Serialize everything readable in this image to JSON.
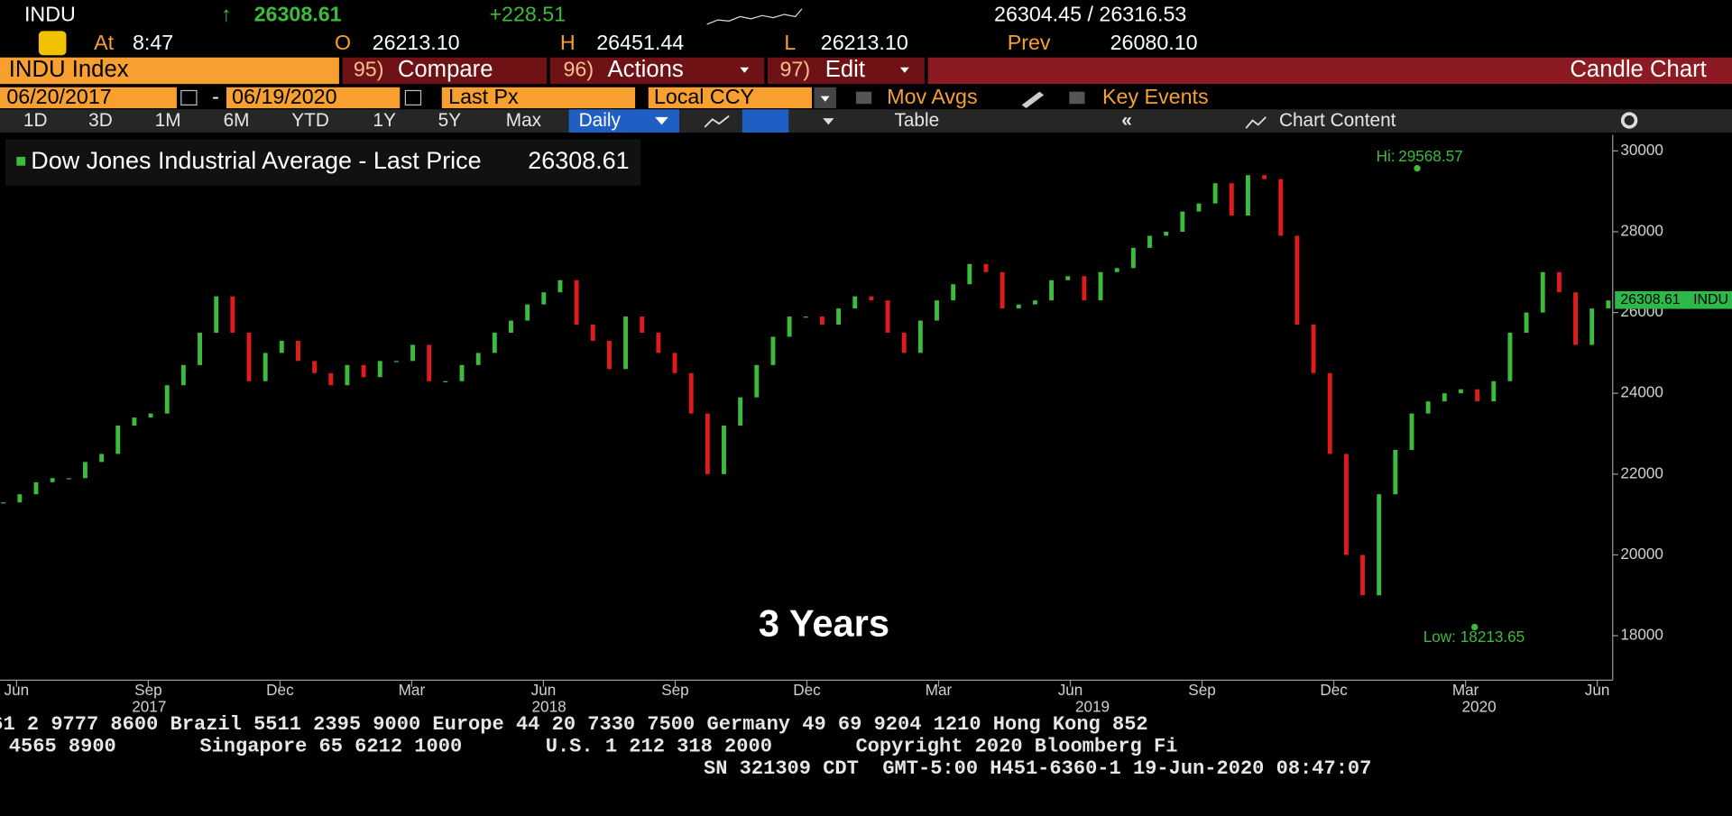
{
  "header": {
    "ticker": "INDU",
    "arrow": "↑",
    "last": "26308.61",
    "change": "+228.51",
    "bid_ask": "26304.45 / 26316.53",
    "at_label": "At",
    "time": "8:47",
    "open_label": "O",
    "open": "26213.10",
    "high_label": "H",
    "high": "26451.44",
    "low_label": "L",
    "low": "26213.10",
    "prev_label": "Prev",
    "prev": "26080.10"
  },
  "toolbar": {
    "security": "INDU Index",
    "compare_num": "95)",
    "compare": "Compare",
    "actions_num": "96)",
    "actions": "Actions",
    "edit_num": "97)",
    "edit": "Edit",
    "chart_type": "Candle Chart",
    "start_date": "06/20/2017",
    "date_sep": "-",
    "end_date": "06/19/2020",
    "field": "Last Px",
    "currency": "Local CCY",
    "mov_avgs": "Mov Avgs",
    "key_events": "Key Events",
    "ranges": [
      "1D",
      "3D",
      "1M",
      "6M",
      "YTD",
      "1Y",
      "5Y",
      "Max"
    ],
    "period": "Daily",
    "table": "Table",
    "chart_content": "Chart Content"
  },
  "chart_data": {
    "type": "candlestick",
    "legend": "Dow Jones Industrial Average - Last Price",
    "last_price": 26308.61,
    "last_label": "INDU",
    "hi_label": "Hi:",
    "hi": 29568.57,
    "low_label": "Low:",
    "low": 18213.65,
    "period_label": "3 Years",
    "up_color": "#3dbb3d",
    "down_color": "#e01b1b",
    "ylim": [
      16900,
      30400
    ],
    "yticks": [
      18000,
      20000,
      22000,
      24000,
      26000,
      28000,
      30000
    ],
    "xticks": [
      "Jun",
      "Sep",
      "Dec",
      "Mar",
      "Jun",
      "Sep",
      "Dec",
      "Mar",
      "Jun",
      "Sep",
      "Dec",
      "Mar",
      "Jun"
    ],
    "years": [
      "2017",
      "2018",
      "2019",
      "2020"
    ],
    "values": [
      21300,
      21500,
      21800,
      21900,
      21900,
      22300,
      22500,
      23200,
      23400,
      23500,
      24200,
      24700,
      25500,
      26400,
      25500,
      24300,
      25000,
      25300,
      24800,
      24500,
      24200,
      24700,
      24400,
      24800,
      24800,
      25200,
      24300,
      24300,
      24700,
      25000,
      25500,
      25800,
      26200,
      26500,
      26800,
      25700,
      25300,
      24600,
      25900,
      25500,
      25000,
      24500,
      23500,
      22000,
      23200,
      23900,
      24700,
      25400,
      25900,
      25900,
      25700,
      26100,
      26400,
      26300,
      25500,
      25000,
      25800,
      26300,
      26700,
      27200,
      27000,
      26100,
      26200,
      26300,
      26800,
      26900,
      26300,
      27000,
      27100,
      27600,
      27900,
      28000,
      28500,
      28700,
      29200,
      28400,
      29400,
      29300,
      27900,
      25700,
      24500,
      22500,
      20000,
      19000,
      21500,
      22600,
      23500,
      23800,
      24000,
      24100,
      23800,
      24300,
      25500,
      26000,
      27000,
      26500,
      25200,
      26100,
      26300
    ]
  },
  "footer": {
    "lines": [
      "61 2 9777 8600 Brazil 5511 2395 9000 Europe 44 20 7330 7500 Germany 49 69 9204 1210 Hong Kong 852",
      "4565 8900       Singapore 65 6212 1000       U.S. 1 212 318 2000       Copyright 2020 Bloomberg Fi",
      "SN 321309 CDT  GMT-5:00 H451-6360-1 19-Jun-2020 08:47:07"
    ]
  }
}
